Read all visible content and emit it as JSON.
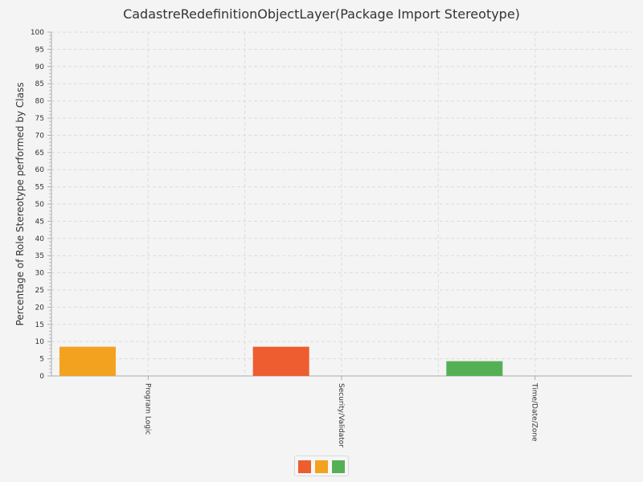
{
  "chart_data": {
    "type": "bar",
    "title": "CadastreRedefinitionObjectLayer(Package Import Stereotype)",
    "ylabel": "Percentage of Role Stereotype performed by Class",
    "xlabel": "",
    "ylim": [
      0,
      100
    ],
    "ytick_step": 5,
    "grid": true,
    "legend_position": "bottom",
    "categories": [
      "Program Logic",
      "Security/Validator",
      "Time/Date/Zone"
    ],
    "values": [
      8.5,
      8.5,
      4.3
    ],
    "bar_colors": [
      "#f3a21f",
      "#ee5d2f",
      "#55b055"
    ],
    "legend_colors": [
      "#ee5d2f",
      "#f3a21f",
      "#55b055"
    ]
  }
}
